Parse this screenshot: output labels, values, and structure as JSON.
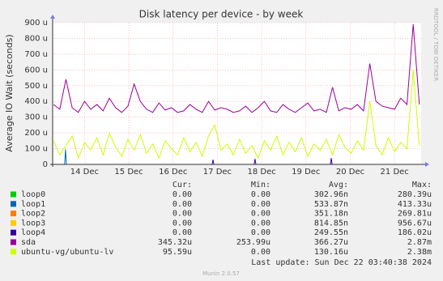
{
  "chart_data": {
    "type": "line",
    "title": "Disk latency per device - by week",
    "y_label": "Average IO Wait (seconds)",
    "side_text": "RRDTOOL / TOBI OETIKER",
    "xlim": [
      13.28,
      21.6
    ],
    "xticks": [
      {
        "value": 14,
        "label": "14 Dec"
      },
      {
        "value": 15,
        "label": "15 Dec"
      },
      {
        "value": 16,
        "label": "16 Dec"
      },
      {
        "value": 17,
        "label": "17 Dec"
      },
      {
        "value": 18,
        "label": "18 Dec"
      },
      {
        "value": 19,
        "label": "19 Dec"
      },
      {
        "value": 20,
        "label": "20 Dec"
      },
      {
        "value": 21,
        "label": "21 Dec"
      }
    ],
    "ylim": [
      0,
      900
    ],
    "yticks": [
      0,
      {
        "value": 100,
        "label": "100 u"
      },
      {
        "value": 200,
        "label": "200 u"
      },
      {
        "value": 300,
        "label": "300 u"
      },
      {
        "value": 400,
        "label": "400 u"
      },
      {
        "value": 500,
        "label": "500 u"
      },
      {
        "value": 600,
        "label": "600 u"
      },
      {
        "value": 700,
        "label": "700 u"
      },
      {
        "value": 800,
        "label": "800 u"
      },
      {
        "value": 900,
        "label": "900 u"
      }
    ],
    "grid": true,
    "x": [
      13.3,
      13.44,
      13.58,
      13.72,
      13.86,
      14,
      14.14,
      14.28,
      14.42,
      14.56,
      14.7,
      14.84,
      14.98,
      15.12,
      15.26,
      15.4,
      15.54,
      15.68,
      15.82,
      15.96,
      16.1,
      16.24,
      16.38,
      16.52,
      16.66,
      16.8,
      16.94,
      17.08,
      17.22,
      17.36,
      17.5,
      17.64,
      17.78,
      17.92,
      18.06,
      18.2,
      18.34,
      18.48,
      18.62,
      18.76,
      18.9,
      19.04,
      19.18,
      19.32,
      19.46,
      19.6,
      19.74,
      19.88,
      20.02,
      20.16,
      20.3,
      20.44,
      20.58,
      20.72,
      20.86,
      21,
      21.14,
      21.28,
      21.42,
      21.56
    ],
    "series": [
      {
        "name": "loop0",
        "color": "#00cc00",
        "x": [
          13.3,
          21.56
        ],
        "values": [
          0,
          0
        ]
      },
      {
        "name": "loop1",
        "color": "#0066b3",
        "x": [
          13.55,
          13.57,
          13.59
        ],
        "values": [
          0,
          95,
          0
        ]
      },
      {
        "name": "loop2",
        "color": "#ff8000",
        "x": [
          13.3,
          21.56
        ],
        "values": [
          0,
          0
        ]
      },
      {
        "name": "loop3",
        "color": "#ffcc00",
        "x": [
          13.3,
          21.56
        ],
        "values": [
          0,
          0
        ]
      },
      {
        "name": "loop4",
        "color": "#330099",
        "x": [
          16.88,
          16.9,
          16.92,
          17.83,
          17.85,
          17.87,
          19.55,
          19.57,
          19.59
        ],
        "values": [
          0,
          30,
          0,
          0,
          35,
          0,
          0,
          40,
          0
        ]
      },
      {
        "name": "sda",
        "color": "#990099",
        "values": [
          380,
          350,
          540,
          360,
          330,
          400,
          350,
          380,
          340,
          420,
          360,
          330,
          370,
          510,
          400,
          350,
          330,
          390,
          345,
          360,
          330,
          340,
          380,
          350,
          330,
          400,
          345,
          360,
          350,
          330,
          340,
          370,
          330,
          360,
          400,
          340,
          330,
          380,
          350,
          330,
          360,
          390,
          340,
          350,
          330,
          490,
          340,
          360,
          350,
          380,
          340,
          640,
          400,
          370,
          360,
          350,
          420,
          380,
          890,
          380
        ]
      },
      {
        "name": "ubuntu-vg/ubuntu-lv",
        "color": "#ccff00",
        "values": [
          150,
          60,
          120,
          180,
          40,
          140,
          90,
          170,
          60,
          200,
          110,
          50,
          160,
          90,
          190,
          70,
          130,
          40,
          150,
          100,
          60,
          170,
          80,
          140,
          50,
          180,
          250,
          90,
          130,
          60,
          160,
          70,
          120,
          40,
          150,
          90,
          180,
          60,
          140,
          80,
          170,
          50,
          130,
          90,
          160,
          60,
          190,
          110,
          70,
          150,
          90,
          400,
          120,
          60,
          170,
          80,
          140,
          100,
          600,
          120
        ]
      }
    ],
    "legend": {
      "headers": [
        "Cur:",
        "Min:",
        "Avg:",
        "Max:"
      ],
      "rows": [
        [
          "0.00",
          "0.00",
          "302.96n",
          "280.39u"
        ],
        [
          "0.00",
          "0.00",
          "533.87n",
          "413.33u"
        ],
        [
          "0.00",
          "0.00",
          "351.18n",
          "269.81u"
        ],
        [
          "0.00",
          "0.00",
          "814.85n",
          "956.67u"
        ],
        [
          "0.00",
          "0.00",
          "249.55n",
          "186.02u"
        ],
        [
          "345.32u",
          "253.99u",
          "366.27u",
          "2.87m"
        ],
        [
          "95.59u",
          "0.00",
          "130.16u",
          "2.38m"
        ]
      ]
    },
    "last_update": "Last update: Sun Dec 22 03:40:38 2024",
    "footer": "Munin 2.0.57"
  }
}
